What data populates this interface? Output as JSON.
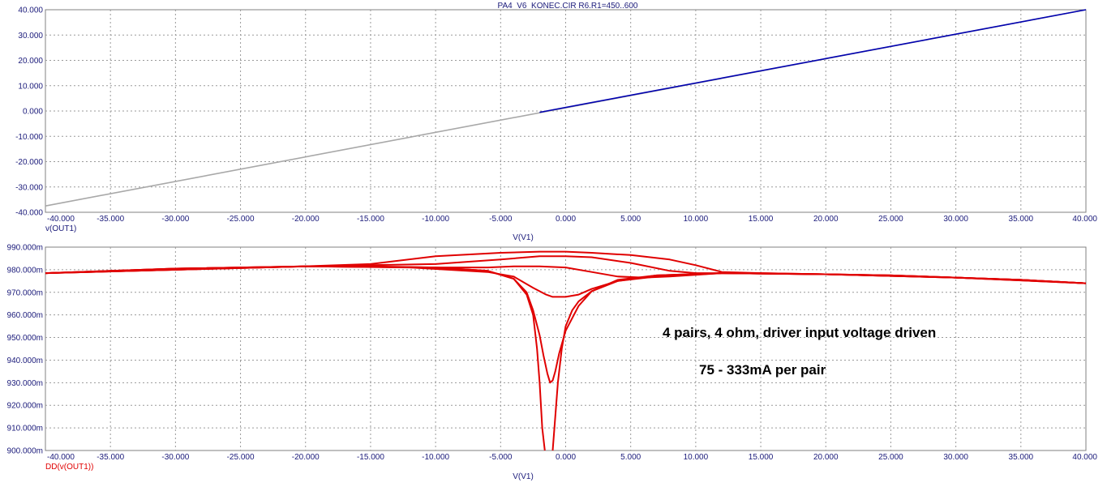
{
  "title": "PA4_V6_KONEC.CIR R6.R1=450..600",
  "colors": {
    "axis_text": "#1a1a7a",
    "grid": "#9a9a9a",
    "series_blue": "#0000b0",
    "series_gray": "#a8a8a8",
    "series_red": "#e00000"
  },
  "chart_data": [
    {
      "type": "line",
      "xlabel": "V(V1)",
      "ylabel": "v(OUT1)",
      "xlim": [
        -40,
        40
      ],
      "ylim": [
        -40,
        40
      ],
      "x_ticks": [
        "-40.000",
        "-35.000",
        "-30.000",
        "-25.000",
        "-20.000",
        "-15.000",
        "-10.000",
        "-5.000",
        "0.000",
        "5.000",
        "10.000",
        "15.000",
        "20.000",
        "25.000",
        "30.000",
        "35.000",
        "40.000"
      ],
      "y_ticks": [
        "40.000",
        "30.000",
        "20.000",
        "10.000",
        "0.000",
        "-10.000",
        "-20.000",
        "-30.000",
        "-40.000"
      ],
      "grid": true,
      "series": [
        {
          "color": "#a8a8a8",
          "x": [
            -40,
            40
          ],
          "y": [
            -37.5,
            40
          ]
        },
        {
          "color": "#0000b0",
          "x": [
            -2,
            40
          ],
          "y": [
            -0.5,
            40
          ]
        }
      ]
    },
    {
      "type": "line",
      "xlabel": "V(V1)",
      "ylabel": "DD(v(OUT1))",
      "xlim": [
        -40,
        40
      ],
      "ylim": [
        0.9,
        0.99
      ],
      "x_ticks": [
        "-40.000",
        "-35.000",
        "-30.000",
        "-25.000",
        "-20.000",
        "-15.000",
        "-10.000",
        "-5.000",
        "0.000",
        "5.000",
        "10.000",
        "15.000",
        "20.000",
        "25.000",
        "30.000",
        "35.000",
        "40.000"
      ],
      "y_ticks": [
        "990.000m",
        "980.000m",
        "970.000m",
        "960.000m",
        "950.000m",
        "940.000m",
        "930.000m",
        "920.000m",
        "910.000m",
        "900.000m"
      ],
      "grid": true,
      "annotations": [
        "4 pairs, 4 ohm, driver input voltage driven",
        "75 - 333mA per pair"
      ],
      "series": [
        {
          "color": "#e00000",
          "x": [
            -40,
            -30,
            -20,
            -15,
            -10,
            -5,
            -2,
            0,
            2,
            5,
            8,
            10,
            12,
            15,
            20,
            25,
            30,
            35,
            40
          ],
          "y": [
            0.9785,
            0.9805,
            0.9815,
            0.9825,
            0.986,
            0.9875,
            0.988,
            0.988,
            0.9875,
            0.9865,
            0.9845,
            0.982,
            0.979,
            0.9785,
            0.978,
            0.9775,
            0.9765,
            0.9755,
            0.974
          ]
        },
        {
          "color": "#e00000",
          "x": [
            -40,
            -30,
            -20,
            -15,
            -10,
            -5,
            -2,
            0,
            2,
            5,
            8,
            10,
            12,
            15,
            20,
            25,
            30,
            35,
            40
          ],
          "y": [
            0.9785,
            0.9805,
            0.9815,
            0.982,
            0.9825,
            0.9845,
            0.986,
            0.986,
            0.9855,
            0.983,
            0.9795,
            0.9785,
            0.9785,
            0.9785,
            0.978,
            0.9775,
            0.9765,
            0.9755,
            0.974
          ]
        },
        {
          "color": "#e00000",
          "x": [
            -40,
            -30,
            -20,
            -15,
            -10,
            -6,
            -4,
            -2,
            0,
            2,
            4,
            6,
            8,
            12,
            20,
            25,
            30,
            35,
            40
          ],
          "y": [
            0.9785,
            0.9805,
            0.9815,
            0.9815,
            0.981,
            0.981,
            0.9815,
            0.9815,
            0.981,
            0.979,
            0.977,
            0.9765,
            0.977,
            0.9785,
            0.978,
            0.9775,
            0.9765,
            0.9755,
            0.974
          ]
        },
        {
          "color": "#e00000",
          "x": [
            -40,
            -20,
            -12,
            -6,
            -4,
            -2.5,
            -1.5,
            -1,
            0,
            1,
            2,
            4,
            7,
            12,
            20,
            30,
            35,
            40
          ],
          "y": [
            0.9785,
            0.9815,
            0.981,
            0.979,
            0.977,
            0.972,
            0.969,
            0.968,
            0.968,
            0.969,
            0.9715,
            0.975,
            0.977,
            0.9785,
            0.978,
            0.9765,
            0.9755,
            0.974
          ]
        },
        {
          "color": "#e00000",
          "x": [
            -40,
            -20,
            -10,
            -6,
            -4,
            -3,
            -2.5,
            -2,
            -1.7,
            -1.4,
            -1.2,
            -1.0,
            -0.8,
            -0.5,
            0,
            1,
            2,
            4,
            7,
            12,
            20,
            30,
            40
          ],
          "y": [
            0.9785,
            0.9815,
            0.981,
            0.9795,
            0.976,
            0.97,
            0.962,
            0.951,
            0.942,
            0.934,
            0.93,
            0.931,
            0.935,
            0.943,
            0.953,
            0.964,
            0.9705,
            0.975,
            0.9775,
            0.9785,
            0.978,
            0.9765,
            0.974
          ]
        },
        {
          "color": "#e00000",
          "x": [
            -40,
            -20,
            -10,
            -6,
            -4,
            -3,
            -2.5,
            -2.2,
            -2.0,
            -1.8,
            -1.6
          ],
          "y": [
            0.9785,
            0.9815,
            0.981,
            0.9795,
            0.976,
            0.969,
            0.96,
            0.945,
            0.93,
            0.91,
            0.9
          ]
        },
        {
          "color": "#e00000",
          "x": [
            -1.0,
            -0.8,
            -0.6,
            -0.3,
            0,
            0.5,
            1,
            2,
            4,
            7,
            12,
            20,
            30,
            40
          ],
          "y": [
            0.9,
            0.915,
            0.93,
            0.945,
            0.955,
            0.962,
            0.966,
            0.9705,
            0.9755,
            0.9775,
            0.9785,
            0.978,
            0.9765,
            0.974
          ]
        }
      ]
    }
  ]
}
